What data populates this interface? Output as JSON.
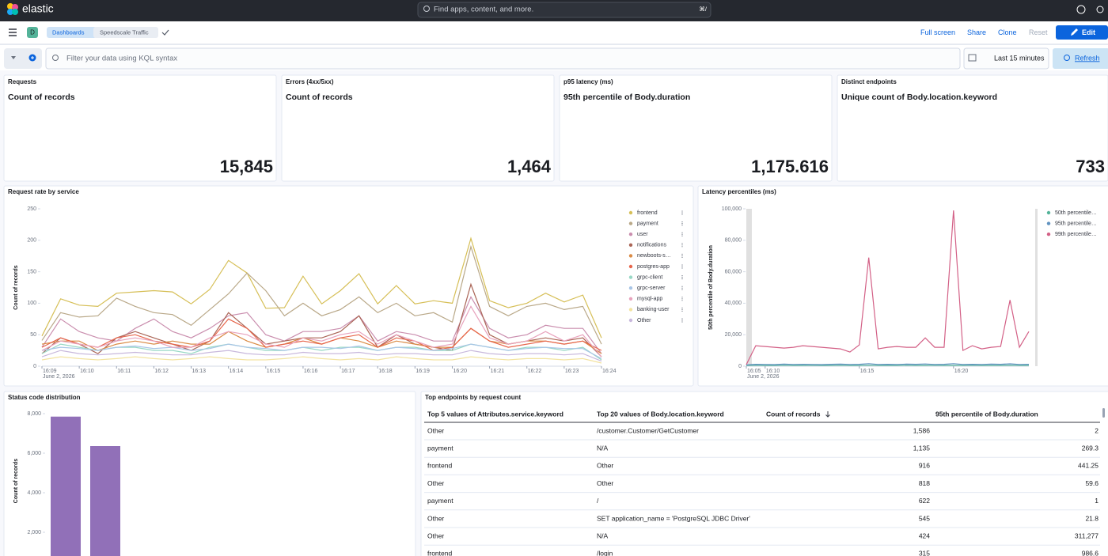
{
  "header": {
    "brand": "elastic",
    "search_placeholder": "Find apps, content, and more.",
    "search_shortcut": "⌘/",
    "space_initial": "D",
    "breadcrumbs": [
      "Dashboards",
      "Speedscale Traffic"
    ],
    "actions": [
      "Full screen",
      "Share",
      "Clone",
      "Reset",
      "Edit"
    ]
  },
  "query_bar": {
    "placeholder": "Filter your data using KQL syntax",
    "time_range": "Last 15 minutes",
    "refresh": "Refresh"
  },
  "metrics": [
    {
      "title": "Requests",
      "subtitle": "Count of records",
      "value": "15,845"
    },
    {
      "title": "Errors (4xx/5xx)",
      "subtitle": "Count of records",
      "value": "1,464"
    },
    {
      "title": "p95 latency (ms)",
      "subtitle": "95th percentile of Body.duration",
      "value": "1,175.616"
    },
    {
      "title": "Distinct endpoints",
      "subtitle": "Unique count of Body.location.keyword",
      "value": "733"
    }
  ],
  "chart_data": [
    {
      "type": "line",
      "title": "Request rate by service",
      "y_label": "Count of records",
      "date_label": "June 2, 2026",
      "categories": [
        "16:09",
        null,
        "16:10",
        null,
        "16:11",
        null,
        "16:12",
        null,
        "16:13",
        null,
        "16:14",
        null,
        "16:15",
        null,
        "16:16",
        null,
        "16:17",
        null,
        "16:18",
        null,
        "16:19",
        null,
        "16:20",
        null,
        "16:21",
        null,
        "16:22",
        null,
        "16:23",
        null,
        "16:24"
      ],
      "ylim": [
        0,
        250
      ],
      "yticks": [
        0,
        50,
        100,
        150,
        200,
        250
      ],
      "legend": "right",
      "series": [
        {
          "name": "frontend",
          "color": "#d6bf57",
          "values": [
            48,
            107,
            97,
            95,
            116,
            118,
            120,
            118,
            99,
            122,
            168,
            148,
            92,
            93,
            143,
            99,
            120,
            147,
            99,
            128,
            99,
            104,
            100,
            203,
            104,
            93,
            100,
            116,
            102,
            113,
            45
          ]
        },
        {
          "name": "payment",
          "color": "#b9a888",
          "values": [
            41,
            85,
            78,
            80,
            108,
            95,
            85,
            82,
            65,
            90,
            115,
            148,
            120,
            80,
            100,
            80,
            90,
            110,
            85,
            100,
            80,
            85,
            70,
            190,
            95,
            80,
            95,
            100,
            90,
            95,
            35
          ]
        },
        {
          "name": "user",
          "color": "#ca8eae",
          "values": [
            30,
            75,
            55,
            45,
            40,
            60,
            75,
            55,
            45,
            60,
            80,
            85,
            50,
            40,
            55,
            55,
            60,
            80,
            40,
            55,
            50,
            40,
            40,
            110,
            60,
            45,
            50,
            65,
            60,
            60,
            20
          ]
        },
        {
          "name": "notifications",
          "color": "#aa6556",
          "values": [
            20,
            45,
            35,
            20,
            45,
            55,
            45,
            35,
            25,
            40,
            85,
            60,
            35,
            40,
            45,
            45,
            55,
            80,
            30,
            50,
            35,
            30,
            25,
            130,
            50,
            35,
            40,
            45,
            40,
            45,
            15
          ]
        },
        {
          "name": "newboots-s…",
          "color": "#da8b45",
          "values": [
            35,
            40,
            40,
            25,
            35,
            40,
            35,
            40,
            35,
            35,
            55,
            40,
            30,
            35,
            45,
            35,
            45,
            40,
            30,
            40,
            35,
            30,
            30,
            60,
            40,
            35,
            40,
            40,
            35,
            40,
            20
          ]
        },
        {
          "name": "postgres-app",
          "color": "#e7664c",
          "values": [
            30,
            45,
            35,
            30,
            45,
            50,
            40,
            35,
            30,
            40,
            75,
            60,
            30,
            35,
            40,
            35,
            45,
            50,
            30,
            45,
            40,
            25,
            30,
            60,
            40,
            30,
            35,
            40,
            35,
            40,
            25
          ]
        },
        {
          "name": "grpc-client",
          "color": "#98d8c5",
          "values": [
            20,
            35,
            30,
            25,
            30,
            30,
            25,
            25,
            20,
            30,
            35,
            30,
            25,
            25,
            30,
            25,
            30,
            30,
            25,
            30,
            30,
            25,
            25,
            35,
            30,
            25,
            30,
            30,
            25,
            30,
            10
          ]
        },
        {
          "name": "grpc-server",
          "color": "#a8c5e6",
          "values": [
            25,
            30,
            28,
            25,
            30,
            32,
            28,
            30,
            25,
            28,
            35,
            30,
            28,
            25,
            30,
            30,
            28,
            32,
            25,
            30,
            28,
            25,
            28,
            35,
            30,
            25,
            28,
            30,
            28,
            28,
            12
          ]
        },
        {
          "name": "mysql-app",
          "color": "#e8a3bd",
          "values": [
            25,
            40,
            35,
            30,
            40,
            45,
            40,
            30,
            30,
            45,
            55,
            50,
            35,
            30,
            45,
            40,
            50,
            55,
            35,
            50,
            40,
            30,
            35,
            95,
            45,
            35,
            40,
            55,
            40,
            50,
            15
          ]
        },
        {
          "name": "banking-user",
          "color": "#f3e3a0",
          "values": [
            10,
            15,
            12,
            10,
            12,
            15,
            12,
            10,
            12,
            15,
            12,
            10,
            10,
            12,
            15,
            12,
            10,
            12,
            10,
            15,
            12,
            10,
            10,
            15,
            12,
            10,
            12,
            12,
            10,
            12,
            5
          ]
        },
        {
          "name": "Other",
          "color": "#c8b8dc",
          "values": [
            15,
            25,
            20,
            18,
            20,
            22,
            20,
            18,
            18,
            22,
            25,
            20,
            18,
            18,
            22,
            20,
            20,
            22,
            18,
            20,
            20,
            18,
            18,
            25,
            20,
            18,
            20,
            20,
            18,
            20,
            8
          ]
        }
      ]
    },
    {
      "type": "line",
      "title": "Latency percentiles (ms)",
      "y_label": "50th percentile of Body.duration",
      "date_label": "June 2, 2026",
      "categories": [
        "16:05",
        null,
        "16:10",
        null,
        null,
        null,
        null,
        null,
        null,
        null,
        null,
        null,
        "16:15",
        null,
        null,
        null,
        null,
        null,
        null,
        null,
        null,
        null,
        "16:20",
        null,
        null,
        null,
        null,
        null,
        null,
        null,
        null
      ],
      "ylim": [
        0,
        100000
      ],
      "yticks": [
        0,
        {
          "value": 20000,
          "label": "20,000"
        },
        {
          "value": 40000,
          "label": "40,000"
        },
        {
          "value": 60000,
          "label": "60,000"
        },
        {
          "value": 80000,
          "label": "80,000"
        },
        {
          "value": 100000,
          "label": "100,000"
        }
      ],
      "legend": "right",
      "series": [
        {
          "name": "50th percentile…",
          "color": "#54b399",
          "values": [
            400,
            600,
            500,
            500,
            600,
            500,
            500,
            600,
            500,
            500,
            600,
            500,
            500,
            600,
            500,
            500,
            500,
            600,
            500,
            500,
            600,
            500,
            500,
            500,
            600,
            500,
            500,
            500,
            600,
            500,
            500
          ]
        },
        {
          "name": "95th percentile…",
          "color": "#6092c0",
          "values": [
            800,
            1200,
            1100,
            1000,
            1300,
            1100,
            1200,
            1100,
            1000,
            1200,
            1300,
            1100,
            1200,
            1600,
            1100,
            1200,
            1100,
            1300,
            1200,
            1400,
            1100,
            1200,
            1600,
            1100,
            1200,
            1100,
            1300,
            1200,
            1500,
            1100,
            1200
          ]
        },
        {
          "name": "99th percentile…",
          "color": "#d36086",
          "values": [
            1000,
            13000,
            12500,
            12000,
            11500,
            12000,
            13000,
            12500,
            12000,
            11500,
            11000,
            9000,
            13500,
            69000,
            11000,
            12000,
            12500,
            12000,
            12000,
            18000,
            12000,
            12000,
            99000,
            10000,
            13000,
            11000,
            12000,
            12500,
            42000,
            12000,
            22000
          ]
        }
      ]
    },
    {
      "type": "bar",
      "title": "Status code distribution",
      "y_label": "Count of records",
      "categories": [
        null,
        null
      ],
      "values": [
        7850,
        6360
      ],
      "color": "#9170b8",
      "ylim": [
        0,
        8400
      ],
      "yticks": [
        {
          "value": 2000,
          "label": "2,000"
        },
        {
          "value": 4000,
          "label": "4,000"
        },
        {
          "value": 6000,
          "label": "6,000"
        },
        {
          "value": 8000,
          "label": "8,000"
        }
      ]
    }
  ],
  "table": {
    "title": "Top endpoints by request count",
    "columns": [
      "Top 5 values of Attributes.service.keyword",
      "Top 20 values of Body.location.keyword",
      "Count of records",
      "95th percentile of Body.duration"
    ],
    "rows": [
      [
        "Other",
        "/customer.Customer/GetCustomer",
        "1,586",
        "2"
      ],
      [
        "payment",
        "N/A",
        "1,135",
        "269.3"
      ],
      [
        "frontend",
        "Other",
        "916",
        "441.25"
      ],
      [
        "Other",
        "Other",
        "818",
        "59.6"
      ],
      [
        "payment",
        "/",
        "622",
        "1"
      ],
      [
        "Other",
        "SET application_name = 'PostgreSQL JDBC Driver'",
        "545",
        "21.8"
      ],
      [
        "Other",
        "N/A",
        "424",
        "311,277"
      ],
      [
        "frontend",
        "/login",
        "315",
        "986.6"
      ]
    ]
  }
}
